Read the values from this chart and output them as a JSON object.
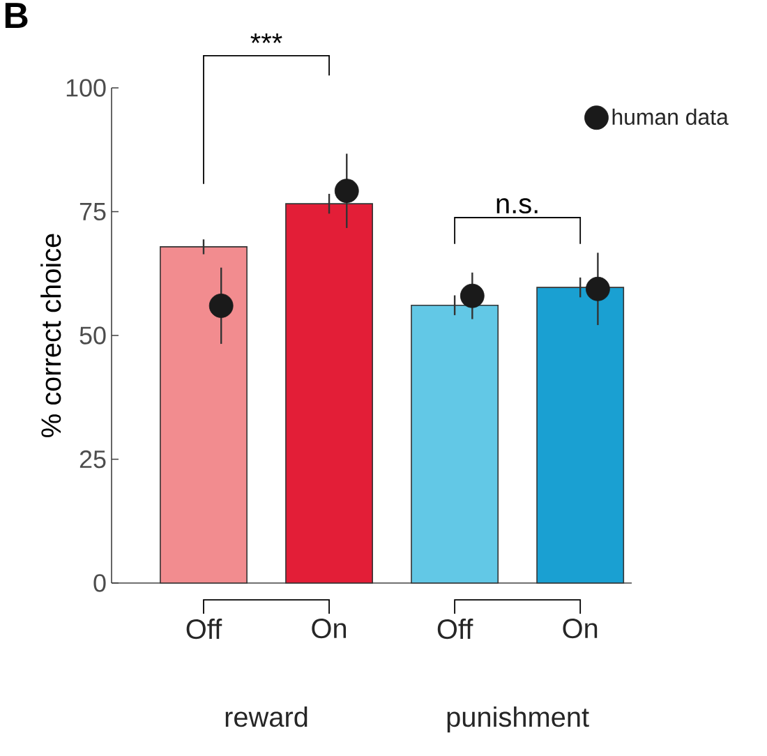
{
  "chart_data": {
    "type": "bar",
    "ylabel": "% correct choice",
    "categories": [
      "Off",
      "On",
      "Off",
      "On"
    ],
    "series": [
      {
        "type": "bar",
        "colors": [
          "#f28c8f",
          "#e31e37",
          "#62c8e6",
          "#1aa0d2"
        ],
        "values": [
          67.9,
          76.6,
          56.1,
          59.7
        ],
        "errors": [
          1.5,
          2,
          2,
          2
        ]
      },
      {
        "type": "scatter",
        "name": "human data",
        "color": "#1a1a1a",
        "values": [
          56,
          79.2,
          58,
          59.4
        ],
        "errors": [
          7.7,
          7.5,
          4.7,
          7.3
        ]
      }
    ],
    "ylim": [
      0,
      100
    ],
    "yticks": [
      0,
      25,
      50,
      75,
      100
    ],
    "grid": false,
    "legend": "top right",
    "marker": "circle",
    "annotations": [
      "***",
      "n.s.",
      "reward",
      "punishment",
      "B"
    ]
  }
}
